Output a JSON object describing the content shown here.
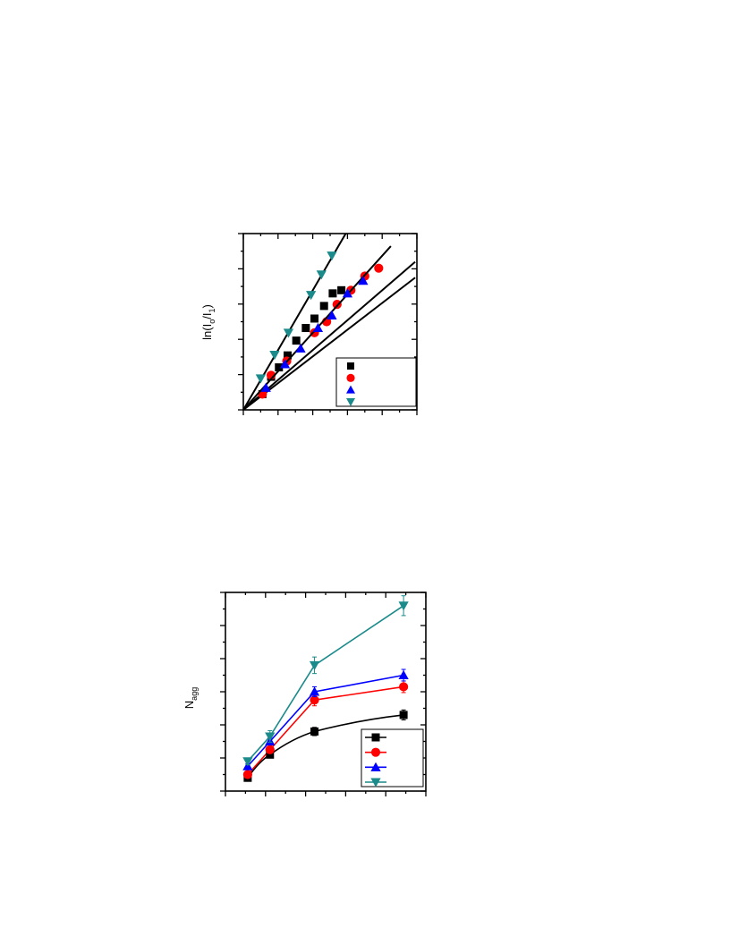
{
  "chart_data": [
    {
      "type": "scatter",
      "ylabel": "ln(I",
      "ylabel_parts": [
        "ln(I",
        "o",
        "/I",
        "1",
        ")"
      ],
      "xlim": [
        0,
        10
      ],
      "ylim": [
        0,
        5.6
      ],
      "grid": false,
      "legend_position": "bottom-right",
      "series": [
        {
          "color": "#000000",
          "marker": "square",
          "x": [
            1.1,
            1.6,
            2.05,
            2.55,
            3.05,
            3.6,
            4.1,
            4.65,
            5.15,
            5.65
          ],
          "y": [
            0.5,
            1.05,
            1.35,
            1.73,
            2.2,
            2.6,
            2.9,
            3.3,
            3.7,
            3.8
          ],
          "fit": [
            [
              0,
              0
            ],
            [
              9.9,
              4.2
            ]
          ]
        },
        {
          "color": "#ff0000",
          "marker": "circle",
          "x": [
            1.1,
            1.6,
            2.5,
            4.1,
            4.8,
            5.4,
            6.2,
            7.0,
            7.8
          ],
          "y": [
            0.5,
            1.1,
            1.55,
            2.45,
            2.8,
            3.35,
            3.8,
            4.25,
            4.5
          ],
          "fit": [
            [
              0,
              0
            ],
            [
              9.9,
              4.7
            ]
          ]
        },
        {
          "color": "#0000ff",
          "marker": "triangle-up",
          "x": [
            1.3,
            2.4,
            3.3,
            4.3,
            5.1,
            6.0,
            6.9
          ],
          "y": [
            0.7,
            1.45,
            1.95,
            2.6,
            3.0,
            3.7,
            4.1
          ],
          "fit": [
            [
              0,
              0
            ],
            [
              8.5,
              5.2
            ]
          ]
        },
        {
          "color": "#1a8a8a",
          "marker": "triangle-down",
          "x": [
            1.0,
            1.8,
            2.6,
            3.9,
            4.5,
            5.1
          ],
          "y": [
            1.0,
            1.75,
            2.45,
            3.65,
            4.3,
            4.9
          ],
          "fit": [
            [
              0,
              0
            ],
            [
              5.9,
              5.6
            ]
          ]
        }
      ]
    },
    {
      "type": "line",
      "ylabel": "N",
      "ylabel_parts": [
        "N",
        "agg"
      ],
      "xlim": [
        0,
        9
      ],
      "ylim": [
        0,
        12
      ],
      "grid": false,
      "legend_position": "bottom-right",
      "series": [
        {
          "color": "#000000",
          "marker": "square",
          "x": [
            1,
            2,
            4,
            8
          ],
          "y": [
            0.8,
            2.2,
            3.6,
            4.6
          ],
          "err": [
            0.1,
            0.2,
            0.25,
            0.3
          ]
        },
        {
          "color": "#ff0000",
          "marker": "circle",
          "x": [
            1,
            2,
            4,
            8
          ],
          "y": [
            1.0,
            2.5,
            5.5,
            6.3
          ],
          "err": [
            0.1,
            0.2,
            0.35,
            0.35
          ]
        },
        {
          "color": "#0000ff",
          "marker": "triangle-up",
          "x": [
            1,
            2,
            4,
            8
          ],
          "y": [
            1.5,
            3.0,
            6.0,
            7.0
          ],
          "err": [
            0.15,
            0.2,
            0.3,
            0.35
          ]
        },
        {
          "color": "#1a8a8a",
          "marker": "triangle-down",
          "x": [
            1,
            2,
            4,
            8
          ],
          "y": [
            1.8,
            3.3,
            7.6,
            11.2
          ],
          "err": [
            0.2,
            0.35,
            0.5,
            0.6
          ]
        }
      ]
    }
  ]
}
